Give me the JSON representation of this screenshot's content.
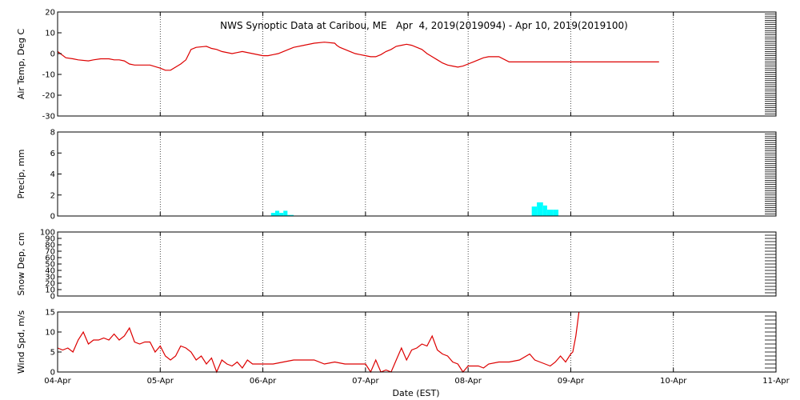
{
  "chart_data": {
    "type": "line",
    "title": "NWS Synoptic Data at Caribou, ME   Apr  4, 2019(2019094) - Apr 10, 2019(2019100)",
    "xlabel": "Date (EST)",
    "x_ticks": [
      "04-Apr",
      "05-Apr",
      "06-Apr",
      "07-Apr",
      "08-Apr",
      "09-Apr",
      "10-Apr",
      "11-Apr"
    ],
    "x_range_days": [
      0,
      7
    ],
    "grid": true,
    "colors": {
      "line": "#dd0000",
      "precip": "#00ffff",
      "frame": "#000000"
    },
    "panels": [
      {
        "type": "line",
        "name": "air_temp",
        "ylabel": "Air Temp, Deg C",
        "ylim": [
          -30,
          20
        ],
        "yticks": [
          -30,
          -20,
          -10,
          0,
          10,
          20
        ],
        "x_days": [
          0,
          0.08,
          0.15,
          0.2,
          0.3,
          0.35,
          0.42,
          0.5,
          0.55,
          0.6,
          0.65,
          0.7,
          0.75,
          0.8,
          0.9,
          1.0,
          1.05,
          1.1,
          1.2,
          1.25,
          1.3,
          1.35,
          1.45,
          1.5,
          1.55,
          1.6,
          1.7,
          1.75,
          1.8,
          1.9,
          2.0,
          2.05,
          2.1,
          2.15,
          2.2,
          2.25,
          2.3,
          2.4,
          2.5,
          2.6,
          2.7,
          2.72,
          2.75,
          2.8,
          2.85,
          2.9,
          2.95,
          3.0,
          3.05,
          3.1,
          3.15,
          3.2,
          3.25,
          3.3,
          3.35,
          3.4,
          3.45,
          3.5,
          3.55,
          3.6,
          3.65,
          3.7,
          3.75,
          3.8,
          3.85,
          3.9,
          3.95,
          4.0,
          4.05,
          4.1,
          4.15,
          4.2,
          4.3,
          4.4,
          4.5,
          4.55,
          4.6,
          4.65,
          4.7,
          5.2,
          5.5,
          5.86
        ],
        "values": [
          1,
          -2,
          -2.5,
          -3,
          -3.5,
          -3,
          -2.5,
          -2.5,
          -3,
          -3,
          -3.5,
          -5,
          -5.5,
          -5.5,
          -5.5,
          -7,
          -8,
          -8,
          -5,
          -3,
          2,
          3,
          3.5,
          2.5,
          2,
          1,
          0,
          0.5,
          1,
          0,
          -1,
          -1,
          -0.5,
          0,
          1,
          2,
          3,
          4,
          5,
          5.5,
          5,
          4,
          3,
          2,
          1,
          0,
          -0.5,
          -1,
          -1.5,
          -1.5,
          -0.5,
          1,
          2,
          3.5,
          4,
          4.5,
          4,
          3,
          2,
          0,
          -1.5,
          -3,
          -4.5,
          -5.5,
          -6,
          -6.5,
          -6,
          -5,
          -4,
          -3,
          -2,
          -1.5,
          -1.5,
          -4,
          -4,
          -4,
          -4,
          -4,
          -4,
          -4,
          -4,
          -4
        ]
      },
      {
        "type": "bar",
        "name": "precip",
        "ylabel": "Precip, mm",
        "ylim": [
          0,
          8
        ],
        "yticks": [
          0,
          2,
          4,
          6,
          8
        ],
        "bars": [
          {
            "start": 2.08,
            "end": 2.12,
            "value": 0.3
          },
          {
            "start": 2.12,
            "end": 2.16,
            "value": 0.5
          },
          {
            "start": 2.16,
            "end": 2.2,
            "value": 0.3
          },
          {
            "start": 2.2,
            "end": 2.24,
            "value": 0.5
          },
          {
            "start": 2.24,
            "end": 2.3,
            "value": 0.1
          },
          {
            "start": 4.62,
            "end": 4.67,
            "value": 0.9
          },
          {
            "start": 4.67,
            "end": 4.73,
            "value": 1.3
          },
          {
            "start": 4.73,
            "end": 4.77,
            "value": 1.0
          },
          {
            "start": 4.77,
            "end": 4.83,
            "value": 0.6
          },
          {
            "start": 4.83,
            "end": 4.88,
            "value": 0.6
          }
        ]
      },
      {
        "type": "line",
        "name": "snow_depth",
        "ylabel": "Snow Dep, cm",
        "ylim": [
          0,
          100
        ],
        "yticks": [
          0,
          10,
          20,
          30,
          40,
          50,
          60,
          70,
          80,
          90,
          100
        ],
        "x_days": [],
        "values": []
      },
      {
        "type": "line",
        "name": "wind_speed",
        "ylabel": "Wind Spd, m/s",
        "ylim": [
          0,
          15
        ],
        "yticks": [
          0,
          5,
          10,
          15
        ],
        "x_days": [
          0,
          0.05,
          0.1,
          0.15,
          0.2,
          0.25,
          0.3,
          0.35,
          0.4,
          0.45,
          0.5,
          0.55,
          0.6,
          0.65,
          0.7,
          0.75,
          0.8,
          0.85,
          0.9,
          0.95,
          1.0,
          1.05,
          1.1,
          1.15,
          1.2,
          1.25,
          1.3,
          1.35,
          1.4,
          1.45,
          1.5,
          1.55,
          1.6,
          1.65,
          1.7,
          1.75,
          1.8,
          1.85,
          1.9,
          1.95,
          2.0,
          2.1,
          2.2,
          2.3,
          2.4,
          2.5,
          2.6,
          2.7,
          2.8,
          2.9,
          3.0,
          3.05,
          3.1,
          3.15,
          3.2,
          3.25,
          3.3,
          3.35,
          3.4,
          3.45,
          3.5,
          3.55,
          3.6,
          3.65,
          3.7,
          3.75,
          3.8,
          3.85,
          3.9,
          3.95,
          4.0,
          4.05,
          4.1,
          4.15,
          4.2,
          4.3,
          4.4,
          4.5,
          4.6,
          4.65,
          4.7,
          4.75,
          4.8,
          4.85,
          4.9,
          4.95,
          5.0,
          5.02,
          5.05,
          5.08
        ],
        "values": [
          6,
          5.5,
          6,
          5,
          8,
          10,
          7,
          8,
          8,
          8.5,
          8,
          9.5,
          8,
          9,
          11,
          7.5,
          7,
          7.5,
          7.5,
          5,
          6.5,
          4,
          3,
          4,
          6.5,
          6,
          5,
          3,
          4,
          2,
          3.5,
          0,
          3,
          2,
          1.5,
          2.5,
          1,
          3,
          2,
          2,
          2,
          2,
          2.5,
          3,
          3,
          3,
          2,
          2.5,
          2,
          2,
          2,
          0,
          3,
          0,
          0.5,
          0,
          3,
          6,
          3,
          5.5,
          6,
          7,
          6.5,
          9,
          5.5,
          4.5,
          4,
          2.5,
          2,
          0,
          1.5,
          1.5,
          1.5,
          1,
          2,
          2.5,
          2.5,
          3,
          4.5,
          3,
          2.5,
          2,
          1.5,
          2.5,
          4,
          2.5,
          4.5,
          5,
          9,
          15
        ]
      }
    ]
  }
}
